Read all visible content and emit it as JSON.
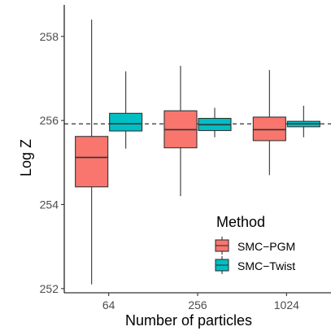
{
  "chart_data": {
    "type": "box",
    "xlabel": "Number of particles",
    "ylabel": "Log Z",
    "categories": [
      "64",
      "256",
      "1024"
    ],
    "ylim": [
      251.9,
      258.75
    ],
    "yticks": [
      252,
      254,
      256,
      258
    ],
    "reference_line": 255.92,
    "legend": {
      "title": "Method",
      "position": "bottom-right"
    },
    "series": [
      {
        "name": "SMC−PGM",
        "color": "#F8766D",
        "boxes": [
          {
            "min": 252.1,
            "q1": 254.42,
            "median": 255.12,
            "q3": 255.62,
            "max": 258.4
          },
          {
            "min": 254.2,
            "q1": 255.35,
            "median": 255.78,
            "q3": 256.23,
            "max": 257.3
          },
          {
            "min": 254.7,
            "q1": 255.52,
            "median": 255.78,
            "q3": 256.08,
            "max": 257.2
          }
        ]
      },
      {
        "name": "SMC−Twist",
        "color": "#00BFC4",
        "boxes": [
          {
            "min": 255.33,
            "q1": 255.75,
            "median": 255.92,
            "q3": 256.17,
            "max": 257.17
          },
          {
            "min": 255.6,
            "q1": 255.76,
            "median": 255.9,
            "q3": 256.05,
            "max": 256.3
          },
          {
            "min": 255.6,
            "q1": 255.85,
            "median": 255.92,
            "q3": 255.98,
            "max": 256.35
          }
        ]
      }
    ]
  }
}
